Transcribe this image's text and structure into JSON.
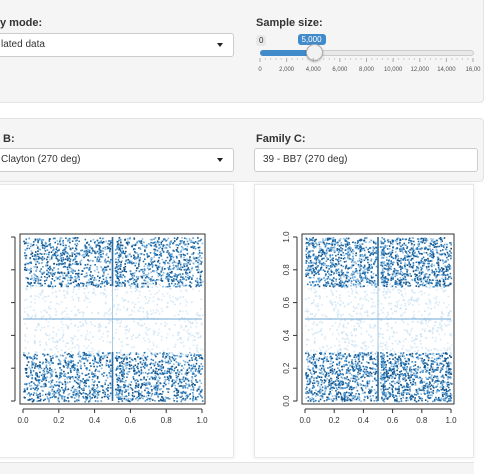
{
  "controls": {
    "mode_label": "y mode:",
    "mode_value": "lated data",
    "sample_label": "Sample size:",
    "sample_min_label": "0",
    "sample_current_label": "5,000",
    "sample_fraction": 0.25,
    "sample_ticks": [
      "0",
      "2,000",
      "4,000",
      "6,000",
      "8,000",
      "10,000",
      "12,000",
      "14,000",
      "16,00"
    ],
    "family_b_label": "B:",
    "family_b_value": "Clayton (270 deg)",
    "family_c_label": "Family C:",
    "family_c_value": "39 - BB7 (270 deg)"
  },
  "colors": {
    "accent": "#428bca",
    "point_dark": "#1f6aa5",
    "point_light": "#c9e1f2",
    "well": "#f5f5f5"
  },
  "plots": {
    "left": {
      "x_ticks": [
        "0.0",
        "0.2",
        "0.4",
        "0.6",
        "0.8",
        "1.0"
      ],
      "y_ticks": [],
      "xlim": [
        0,
        1
      ],
      "ylim": [
        0,
        1
      ]
    },
    "right": {
      "x_ticks": [
        "0.0",
        "0.2",
        "0.4",
        "0.6",
        "0.8",
        "1.0"
      ],
      "y_ticks": [
        "0.0",
        "0.2",
        "0.4",
        "0.6",
        "0.8",
        "1.0"
      ],
      "xlim": [
        0,
        1
      ],
      "ylim": [
        0,
        1
      ]
    }
  },
  "chart_data": [
    {
      "type": "scatter",
      "title": "",
      "xlabel": "",
      "ylabel": "",
      "xlim": [
        0,
        1
      ],
      "ylim": [
        0,
        1
      ],
      "bands": [
        {
          "y_range": [
            0.0,
            0.3
          ],
          "density": "high"
        },
        {
          "y_range": [
            0.3,
            0.7
          ],
          "density": "low"
        },
        {
          "y_range": [
            0.7,
            1.0
          ],
          "density": "high"
        }
      ],
      "line_x": 0.5,
      "line_y": 0.5
    },
    {
      "type": "scatter",
      "title": "",
      "xlabel": "",
      "ylabel": "",
      "xlim": [
        0,
        1
      ],
      "ylim": [
        0,
        1
      ],
      "bands": [
        {
          "y_range": [
            0.0,
            0.3
          ],
          "density": "high"
        },
        {
          "y_range": [
            0.3,
            0.7
          ],
          "density": "low"
        },
        {
          "y_range": [
            0.7,
            1.0
          ],
          "density": "high"
        }
      ],
      "line_x": 0.5,
      "line_y": 0.5
    }
  ]
}
